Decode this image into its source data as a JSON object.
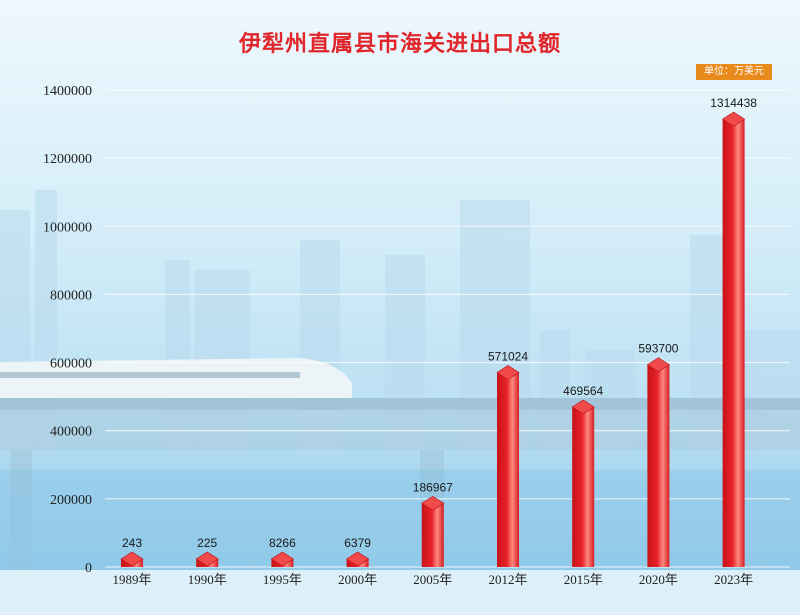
{
  "title": "伊犁州直属县市海关进出口总额",
  "unit_label": "单位：万美元",
  "colors": {
    "title": "#e0262b",
    "bar": "#e8222a",
    "unit_badge": "#e98a1c"
  },
  "chart_data": {
    "type": "bar",
    "categories": [
      "1989年",
      "1990年",
      "1995年",
      "2000年",
      "2005年",
      "2012年",
      "2015年",
      "2020年",
      "2023年"
    ],
    "values": [
      243,
      225,
      8266,
      6379,
      186967,
      571024,
      469564,
      593700,
      1314438
    ],
    "data_labels": [
      "243",
      "225",
      "8266",
      "6379",
      "186967",
      "571024",
      "469564",
      "593700",
      "1314438"
    ],
    "y_ticks": [
      "0",
      "200000",
      "400000",
      "600000",
      "800000",
      "1000000",
      "1200000",
      "1400000"
    ],
    "ylim": [
      0,
      1400000
    ],
    "title": "伊犁州直属县市海关进出口总额",
    "xlabel": "",
    "ylabel": "",
    "grid": true,
    "legend": "none"
  }
}
